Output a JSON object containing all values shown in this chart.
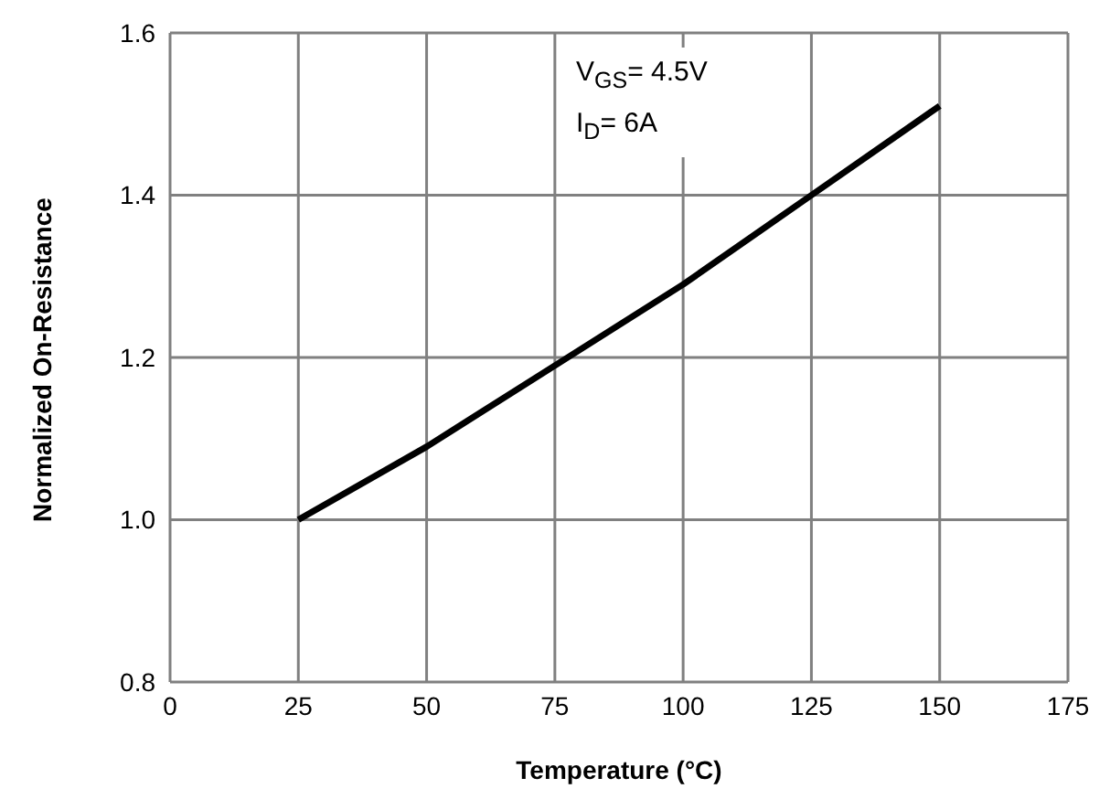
{
  "chart_data": {
    "type": "line",
    "xlabel": "Temperature (°C)",
    "ylabel": "Normalized On-Resistance",
    "x": [
      25,
      50,
      75,
      100,
      125,
      150
    ],
    "series": [
      {
        "color": "#000000",
        "values": [
          1.0,
          1.09,
          1.19,
          1.29,
          1.4,
          1.51
        ]
      }
    ],
    "xlim": [
      0,
      175
    ],
    "xticks": [
      0,
      25,
      50,
      75,
      100,
      125,
      150,
      175
    ],
    "ylim": [
      0.8,
      1.6
    ],
    "yticks": [
      0.8,
      {
        "value": 1,
        "label": "1.0"
      },
      1.2,
      1.4,
      1.6
    ],
    "grid": true,
    "legend": false,
    "marker": "none",
    "line_style": "solid",
    "annotations": [
      "V$_{GS}$= 4.5V",
      "I$_{D}$= 6A"
    ]
  }
}
